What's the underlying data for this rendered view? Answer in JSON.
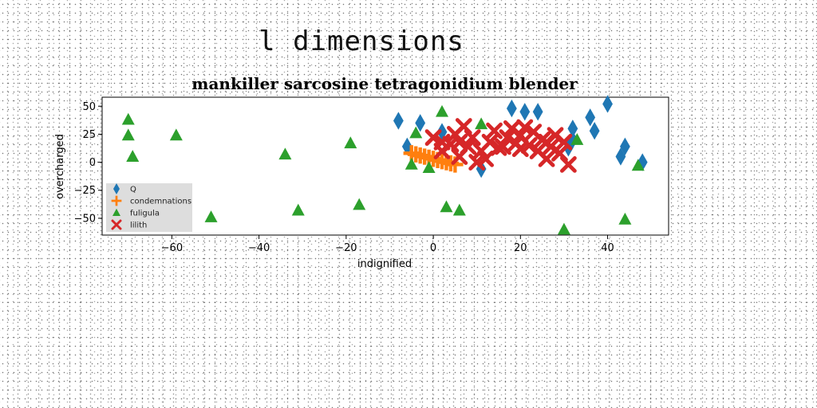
{
  "page": {
    "heading": "l dimensions"
  },
  "chart_data": {
    "type": "scatter",
    "title": "mankiller sarcosine tetragonidium blender",
    "xlabel": "indignified",
    "ylabel": "overcharged",
    "xlim": [
      -76,
      54
    ],
    "ylim": [
      -65,
      58
    ],
    "xticks": [
      -60,
      -40,
      -20,
      0,
      20,
      40
    ],
    "yticks": [
      50,
      25,
      0,
      -25,
      -50
    ],
    "legend_position": "lower-left",
    "series": [
      {
        "name": "Q",
        "marker": "diamond",
        "color": "#1f77b4",
        "points": [
          [
            -8,
            37
          ],
          [
            -6,
            14
          ],
          [
            -3,
            35
          ],
          [
            2,
            27
          ],
          [
            11,
            -6
          ],
          [
            18,
            48
          ],
          [
            21,
            45
          ],
          [
            24,
            45
          ],
          [
            32,
            30
          ],
          [
            32,
            20
          ],
          [
            31,
            13
          ],
          [
            36,
            40
          ],
          [
            37,
            28
          ],
          [
            40,
            52
          ],
          [
            43,
            5
          ],
          [
            44,
            14
          ],
          [
            48,
            0
          ]
        ]
      },
      {
        "name": "condemnations",
        "marker": "plus",
        "color": "#ff7f0e",
        "points": [
          [
            -5,
            8
          ],
          [
            -4,
            7
          ],
          [
            -3,
            6
          ],
          [
            -2,
            5
          ],
          [
            -1,
            4
          ],
          [
            0,
            3
          ],
          [
            1,
            2
          ],
          [
            2,
            1
          ],
          [
            3,
            0
          ],
          [
            4,
            -1
          ],
          [
            5,
            -2
          ]
        ]
      },
      {
        "name": "fuligula",
        "marker": "triangle",
        "color": "#2ca02c",
        "points": [
          [
            -70,
            38
          ],
          [
            -70,
            24
          ],
          [
            -69,
            5
          ],
          [
            -59,
            24
          ],
          [
            -51,
            -49
          ],
          [
            -34,
            7
          ],
          [
            -31,
            -43
          ],
          [
            -19,
            17
          ],
          [
            -17,
            -38
          ],
          [
            -5,
            -2
          ],
          [
            -4,
            26
          ],
          [
            -1,
            -5
          ],
          [
            2,
            45
          ],
          [
            3,
            -40
          ],
          [
            6,
            -43
          ],
          [
            11,
            34
          ],
          [
            30,
            -60
          ],
          [
            33,
            20
          ],
          [
            44,
            -51
          ],
          [
            47,
            -3
          ]
        ]
      },
      {
        "name": "lilith",
        "marker": "x",
        "color": "#d62728",
        "points": [
          [
            0,
            22
          ],
          [
            2,
            10
          ],
          [
            4,
            16
          ],
          [
            5,
            25
          ],
          [
            6,
            5
          ],
          [
            7,
            32
          ],
          [
            8,
            14
          ],
          [
            9,
            22
          ],
          [
            10,
            0
          ],
          [
            11,
            10
          ],
          [
            12,
            3
          ],
          [
            13,
            18
          ],
          [
            14,
            28
          ],
          [
            15,
            13
          ],
          [
            17,
            22
          ],
          [
            18,
            30
          ],
          [
            19,
            17
          ],
          [
            20,
            24
          ],
          [
            21,
            31
          ],
          [
            22,
            15
          ],
          [
            23,
            27
          ],
          [
            24,
            10
          ],
          [
            25,
            20
          ],
          [
            26,
            3
          ],
          [
            27,
            14
          ],
          [
            28,
            24
          ],
          [
            29,
            8
          ],
          [
            30,
            18
          ],
          [
            31,
            -2
          ],
          [
            2,
            18
          ],
          [
            6,
            18
          ],
          [
            16,
            14
          ],
          [
            20,
            12
          ],
          [
            26,
            18
          ]
        ]
      }
    ]
  }
}
